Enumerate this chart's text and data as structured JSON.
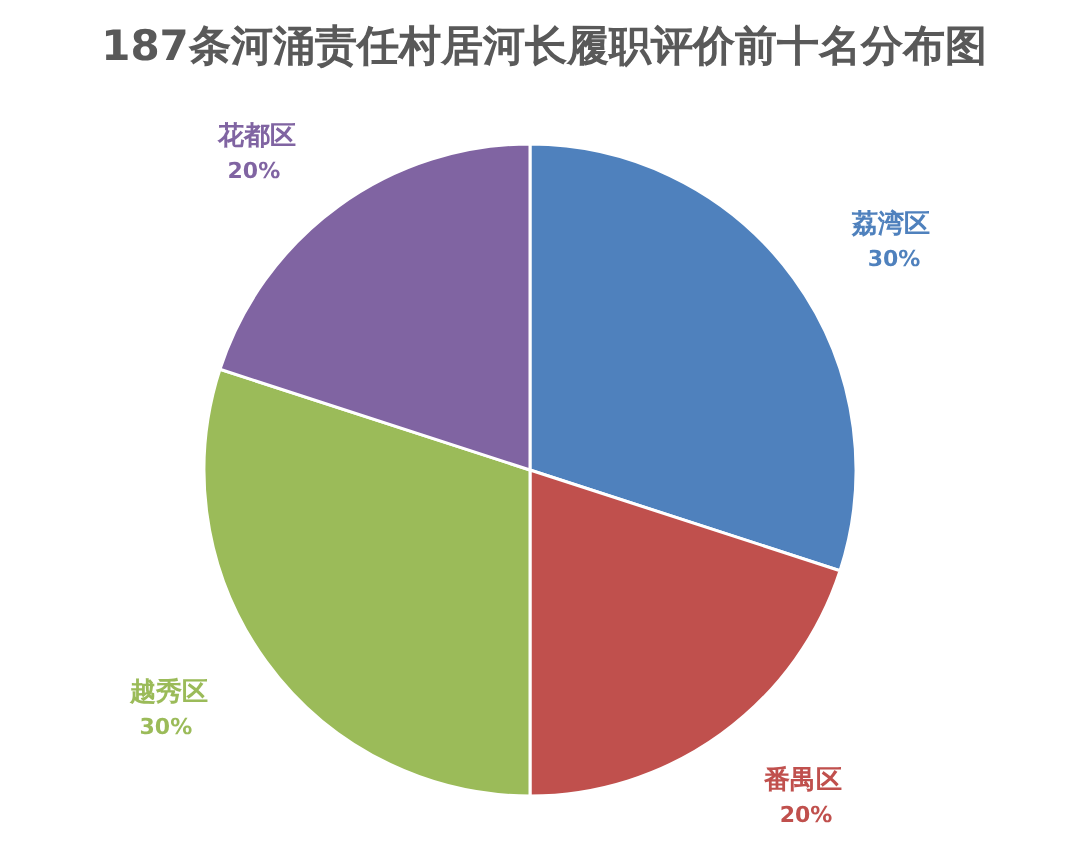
{
  "chart_data": {
    "type": "pie",
    "title": "187条河涌责任村居河长履职评价前十名分布图",
    "categories": [
      "荔湾区",
      "番禺区",
      "越秀区",
      "花都区"
    ],
    "values": [
      30,
      20,
      30,
      20
    ],
    "colors": [
      "#4f81bd",
      "#c0504d",
      "#9bbb59",
      "#8064a2"
    ],
    "value_labels": [
      "30%",
      "20%",
      "30%",
      "20%"
    ]
  }
}
